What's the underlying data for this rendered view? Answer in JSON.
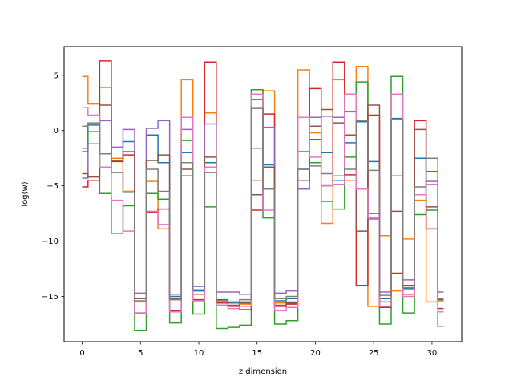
{
  "chart_data": {
    "type": "line",
    "drawstyle": "steps-mid",
    "xlabel": "z dimension",
    "ylabel": "log(w)",
    "xlim": [
      -1.55,
      32.55
    ],
    "ylim": [
      -19.1,
      7.6
    ],
    "x_ticks": [
      0,
      5,
      10,
      15,
      20,
      25,
      30
    ],
    "y_ticks": [
      -15,
      -10,
      -5,
      0,
      5
    ],
    "tick_labels_x": [
      "0",
      "5",
      "10",
      "15",
      "20",
      "25",
      "30"
    ],
    "tick_labels_y": [
      "−15",
      "−10",
      "−5",
      "0",
      "5"
    ],
    "grid": false,
    "x": [
      0,
      1,
      2,
      3,
      4,
      5,
      6,
      7,
      8,
      9,
      10,
      11,
      12,
      13,
      14,
      15,
      16,
      17,
      18,
      19,
      20,
      21,
      22,
      23,
      24,
      25,
      26,
      27,
      28,
      29,
      30,
      31
    ],
    "series": [
      {
        "color": "#1f77b4",
        "values": [
          -1.6,
          0.5,
          -3.3,
          -2.5,
          -1.0,
          -15.2,
          -0.4,
          -2.9,
          -15.0,
          -2.0,
          -14.5,
          -2.9,
          -15.3,
          -15.6,
          -15.5,
          2.8,
          -3.1,
          -15.4,
          -15.2,
          -3.5,
          -0.8,
          -2.0,
          -4.5,
          -1.1,
          0.8,
          -2.8,
          -15.2,
          1.1,
          -14.3,
          -2.5,
          -3.7,
          -15.3
        ]
      },
      {
        "color": "#ff7f0e",
        "values": [
          4.9,
          2.4,
          3.9,
          -2.5,
          -5.5,
          -15.5,
          -4.6,
          -8.9,
          -15.3,
          4.6,
          -14.8,
          1.6,
          -15.6,
          -15.5,
          -15.7,
          -4.5,
          3.6,
          -15.6,
          -15.5,
          5.5,
          -0.2,
          -8.4,
          4.6,
          -4.5,
          5.8,
          -15.9,
          -9.5,
          -14.5,
          -9.8,
          -6.3,
          -15.5,
          -15.4
        ]
      },
      {
        "color": "#2ca02c",
        "values": [
          -1.9,
          -0.1,
          -5.7,
          -9.3,
          -6.8,
          -18.1,
          -5.7,
          -6.2,
          -17.4,
          -0.9,
          -16.6,
          -6.9,
          -17.9,
          -17.8,
          -17.6,
          3.7,
          -7.9,
          -17.5,
          -17.2,
          -1.9,
          -2.9,
          -6.4,
          -7.1,
          -2.4,
          4.4,
          -7.5,
          -17.5,
          4.9,
          -16.5,
          -7.6,
          -7.2,
          -17.7
        ]
      },
      {
        "color": "#d62728",
        "values": [
          -5.1,
          -4.5,
          6.3,
          -2.8,
          -2.2,
          -16.5,
          -7.4,
          -7.1,
          -16.3,
          -4.1,
          -15.3,
          6.2,
          -15.6,
          -15.9,
          -16.2,
          -7.2,
          1.5,
          -15.9,
          -15.7,
          -4.5,
          3.8,
          -5.0,
          6.2,
          -4.0,
          -14.0,
          1.4,
          -16.0,
          -12.9,
          -14.8,
          0.9,
          -8.9,
          -16.1
        ]
      },
      {
        "color": "#9467bd",
        "values": [
          -4.3,
          -1.2,
          0.9,
          -1.5,
          0.1,
          -14.7,
          0.2,
          0.9,
          -14.8,
          0.1,
          -14.1,
          0.6,
          -14.6,
          -14.6,
          -14.8,
          -1.6,
          0.3,
          -14.7,
          -14.5,
          -5.3,
          1.2,
          1.3,
          1.2,
          1.7,
          0.9,
          -8.0,
          -14.6,
          -4.1,
          -13.5,
          -5.8,
          -4.6,
          -14.6
        ]
      },
      {
        "color": "#8c564b",
        "values": [
          -3.9,
          -4.2,
          2.3,
          -2.7,
          -1.9,
          -15.2,
          -2.7,
          -2.2,
          -15.2,
          -3.5,
          -14.8,
          -2.4,
          -15.8,
          -15.8,
          -15.6,
          -5.8,
          -3.3,
          -15.8,
          -15.6,
          -4.5,
          0.4,
          1.9,
          0.7,
          -0.4,
          -9.1,
          2.3,
          -15.5,
          -7.3,
          -14.0,
          0.1,
          -6.9,
          -15.2
        ]
      },
      {
        "color": "#e377c2",
        "values": [
          2.1,
          1.4,
          -3.3,
          -6.3,
          -9.1,
          -16.5,
          -7.3,
          -8.5,
          -16.4,
          1.2,
          -15.4,
          -3.3,
          -15.8,
          -16.1,
          -15.9,
          3.3,
          -7.2,
          -16.3,
          -16.0,
          1.2,
          -2.4,
          -5.0,
          -4.9,
          3.3,
          -5.3,
          -7.9,
          -15.9,
          3.3,
          -15.0,
          -5.8,
          -4.9,
          -16.4
        ]
      },
      {
        "color": "#7f7f7f",
        "values": [
          0.4,
          0.7,
          -2.1,
          -3.8,
          -5.6,
          -15.4,
          -3.5,
          -5.5,
          -15.3,
          -2.9,
          -14.4,
          -3.8,
          -15.4,
          -15.5,
          -15.3,
          2.0,
          -5.3,
          -15.2,
          -15.0,
          -3.5,
          -3.2,
          -3.9,
          -4.1,
          -3.5,
          0.9,
          -3.6,
          -14.9,
          1.0,
          -14.2,
          -5.1,
          -2.5,
          -15.2
        ]
      }
    ]
  }
}
